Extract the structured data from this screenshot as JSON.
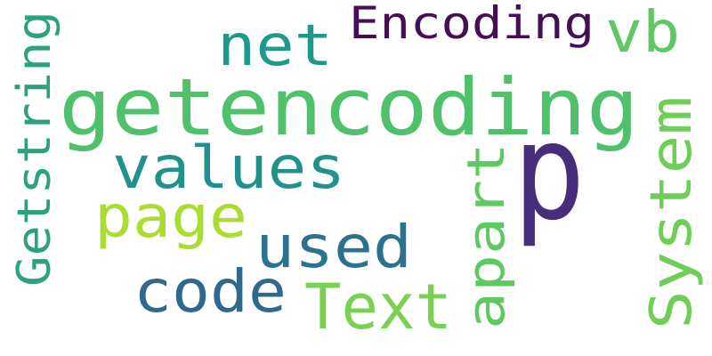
{
  "word_cloud": {
    "background": "#ffffff",
    "words": [
      {
        "text": "getencoding",
        "color": "#4fc16b"
      },
      {
        "text": "p",
        "color": "#472d7b"
      },
      {
        "text": "Encoding",
        "color": "#440f54"
      },
      {
        "text": "net",
        "color": "#1f9a8a"
      },
      {
        "text": "vb",
        "color": "#5ec962"
      },
      {
        "text": "values",
        "color": "#21918c"
      },
      {
        "text": "page",
        "color": "#aadc32"
      },
      {
        "text": "used",
        "color": "#2c728e"
      },
      {
        "text": "code",
        "color": "#31688e"
      },
      {
        "text": "Text",
        "color": "#7ad151"
      },
      {
        "text": "Getstring",
        "color": "#2ba17f"
      },
      {
        "text": "apart",
        "color": "#5ec962"
      },
      {
        "text": "System",
        "color": "#6ece58"
      }
    ]
  }
}
